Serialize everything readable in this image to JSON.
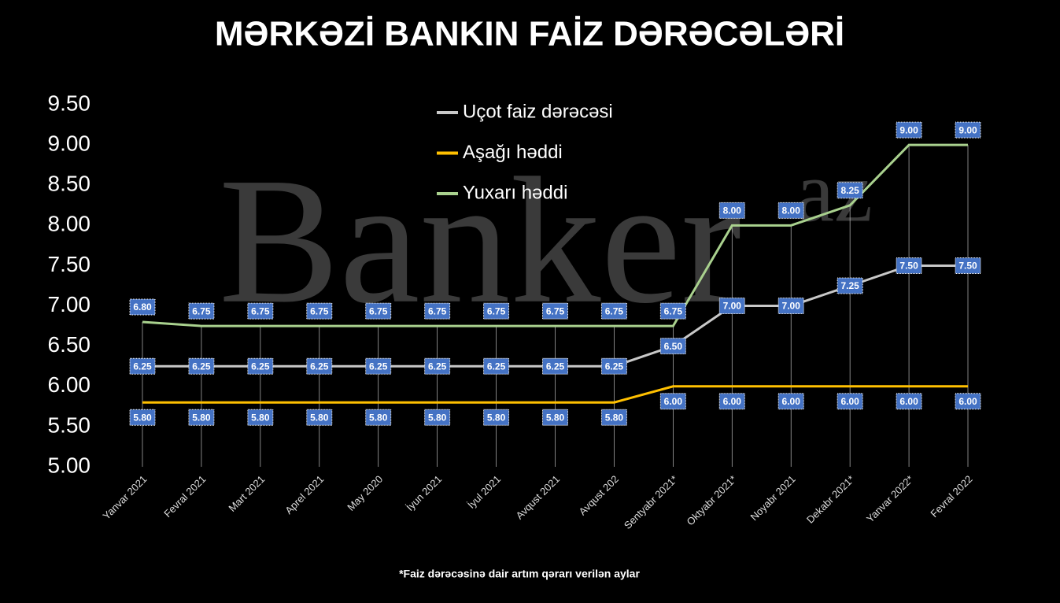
{
  "chart_data": {
    "type": "line",
    "title": "MƏRKƏZİ BANKIN FAİZ DƏRƏCƏLƏRİ",
    "watermark": "Banker",
    "watermark_suffix": "az",
    "footnote": "*Faiz dərəcəsinə dair artım qərarı verilən aylar",
    "categories": [
      "Yanvar 2021",
      "Fevral  2021",
      "Mart  2021",
      "Aprel  2021",
      "May 2020",
      "İyun  2021",
      "İyul  2021",
      "Avqust  2021",
      "Avqust 202",
      "Sentyabr  2021*",
      "Oktyabr  2021*",
      "Noyabr  2021",
      "Dekabr  2021*",
      "Yanvar 2022*",
      "Fevral  2022"
    ],
    "series": [
      {
        "name": "Uçot faiz dərəcəsi",
        "color": "#c8c8c8",
        "values": [
          6.25,
          6.25,
          6.25,
          6.25,
          6.25,
          6.25,
          6.25,
          6.25,
          6.25,
          6.5,
          7,
          7,
          7.25,
          7.5,
          7.5
        ],
        "value_labels": [
          "6.25",
          "6.25",
          "6.25",
          "6.25",
          "6.25",
          "6.25",
          "6.25",
          "6.25",
          "6.25",
          "6.50",
          "7.00",
          "7.00",
          "7.25",
          "7.50",
          "7.50"
        ]
      },
      {
        "name": "Aşağı həddi",
        "color": "#ffc000",
        "values": [
          5.8,
          5.8,
          5.8,
          5.8,
          5.8,
          5.8,
          5.8,
          5.8,
          5.8,
          6,
          6,
          6,
          6,
          6,
          6
        ],
        "value_labels": [
          "5.80",
          "5.80",
          "5.80",
          "5.80",
          "5.80",
          "5.80",
          "5.80",
          "5.80",
          "5.80",
          "6.00",
          "6.00",
          "6.00",
          "6.00",
          "6.00",
          "6.00"
        ]
      },
      {
        "name": "Yuxarı həddi",
        "color": "#a9d18e",
        "values": [
          6.8,
          6.75,
          6.75,
          6.75,
          6.75,
          6.75,
          6.75,
          6.75,
          6.75,
          6.75,
          8,
          8,
          8.25,
          9,
          9
        ],
        "value_labels": [
          "6.80",
          "6.75",
          "6.75",
          "6.75",
          "6.75",
          "6.75",
          "6.75",
          "6.75",
          "6.75",
          "6.75",
          "8.00",
          "8.00",
          "8.25",
          "9.00",
          "9.00"
        ]
      }
    ],
    "ylim": [
      5,
      9.5
    ],
    "yticks": [
      {
        "value": 5,
        "label": "5.00"
      },
      {
        "value": 5.5,
        "label": "5.50"
      },
      {
        "value": 6,
        "label": "6.00"
      },
      {
        "value": 6.5,
        "label": "6.50"
      },
      {
        "value": 7,
        "label": "7.00"
      },
      {
        "value": 7.5,
        "label": "7.50"
      },
      {
        "value": 8,
        "label": "8.00"
      },
      {
        "value": 8.5,
        "label": "8.50"
      },
      {
        "value": 9,
        "label": "9.00"
      },
      {
        "value": 9.5,
        "label": "9.50"
      }
    ],
    "label_box_color": "#4472c4"
  }
}
